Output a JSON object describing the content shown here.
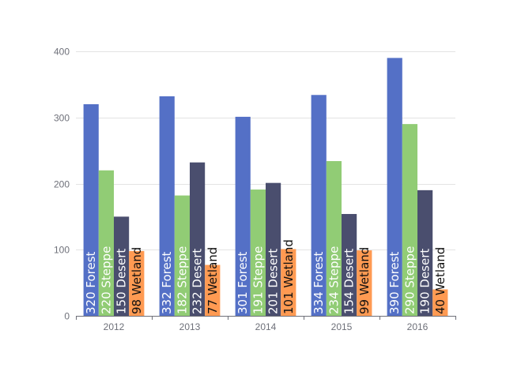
{
  "chart_data": {
    "type": "bar",
    "title": "",
    "xlabel": "",
    "ylabel": "",
    "categories": [
      "2012",
      "2013",
      "2014",
      "2015",
      "2016"
    ],
    "ylim": [
      0,
      400
    ],
    "yticks": [
      0,
      100,
      200,
      300,
      400
    ],
    "grid": true,
    "legend": "none",
    "series": [
      {
        "name": "Forest",
        "color": "#5470c6",
        "label_color": "#ffffff",
        "values": [
          320,
          332,
          301,
          334,
          390
        ]
      },
      {
        "name": "Steppe",
        "color": "#91cc75",
        "label_color": "#ffffff",
        "values": [
          220,
          182,
          191,
          234,
          290
        ]
      },
      {
        "name": "Desert",
        "color": "#4a4e6e",
        "label_color": "#ffffff",
        "values": [
          150,
          232,
          201,
          154,
          190
        ]
      },
      {
        "name": "Wetland",
        "color": "#ff9a52",
        "label_color": "#111111",
        "values": [
          98,
          77,
          101,
          99,
          40
        ]
      }
    ]
  }
}
